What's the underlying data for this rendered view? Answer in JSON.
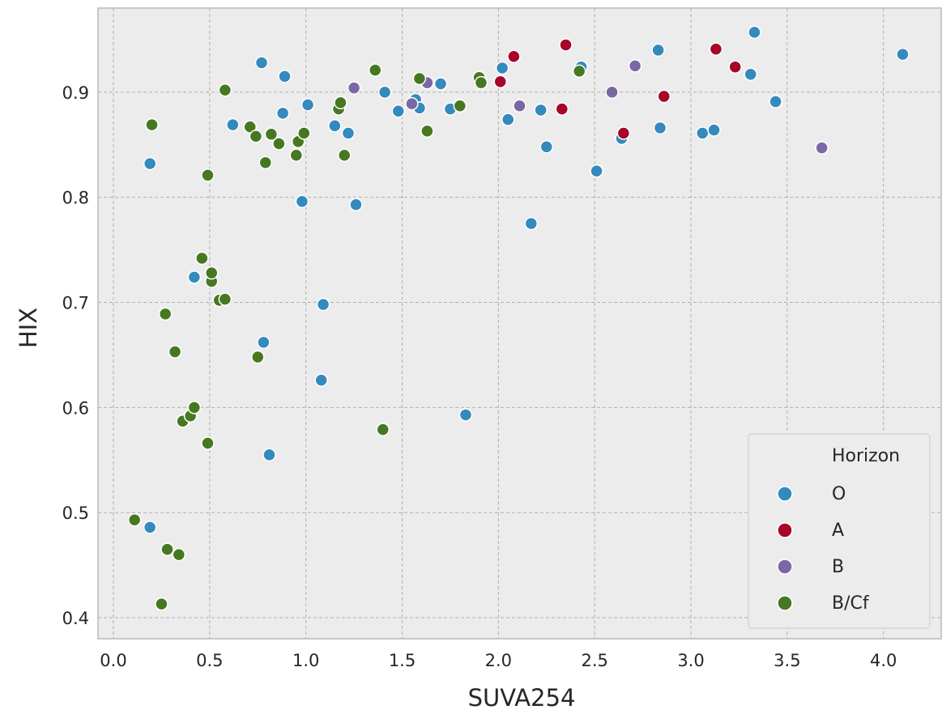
{
  "chart_data": {
    "type": "scatter",
    "title": "",
    "xlabel": "SUVA254",
    "ylabel": "HIX",
    "xlim": [
      -0.08,
      4.3
    ],
    "ylim": [
      0.38,
      0.98
    ],
    "xticks": [
      "0.0",
      "0.5",
      "1.0",
      "1.5",
      "2.0",
      "2.5",
      "3.0",
      "3.5",
      "4.0"
    ],
    "yticks": [
      "0.4",
      "0.5",
      "0.6",
      "0.7",
      "0.8",
      "0.9"
    ],
    "grid": true,
    "legend": {
      "title": "Horizon",
      "position": "lower-right"
    },
    "series": [
      {
        "name": "O",
        "color": "#348abd",
        "points": [
          [
            0.19,
            0.832
          ],
          [
            0.19,
            0.486
          ],
          [
            0.42,
            0.724
          ],
          [
            0.62,
            0.869
          ],
          [
            0.77,
            0.928
          ],
          [
            0.78,
            0.662
          ],
          [
            0.81,
            0.555
          ],
          [
            0.88,
            0.88
          ],
          [
            0.89,
            0.915
          ],
          [
            0.98,
            0.796
          ],
          [
            1.01,
            0.888
          ],
          [
            1.08,
            0.626
          ],
          [
            1.09,
            0.698
          ],
          [
            1.15,
            0.868
          ],
          [
            1.22,
            0.861
          ],
          [
            1.26,
            0.793
          ],
          [
            1.41,
            0.9
          ],
          [
            1.48,
            0.882
          ],
          [
            1.57,
            0.893
          ],
          [
            1.59,
            0.885
          ],
          [
            1.7,
            0.908
          ],
          [
            1.75,
            0.884
          ],
          [
            1.83,
            0.593
          ],
          [
            2.02,
            0.923
          ],
          [
            2.05,
            0.874
          ],
          [
            2.17,
            0.775
          ],
          [
            2.22,
            0.883
          ],
          [
            2.25,
            0.848
          ],
          [
            2.43,
            0.924
          ],
          [
            2.51,
            0.825
          ],
          [
            2.64,
            0.856
          ],
          [
            2.83,
            0.94
          ],
          [
            2.84,
            0.866
          ],
          [
            3.06,
            0.861
          ],
          [
            3.12,
            0.864
          ],
          [
            3.31,
            0.917
          ],
          [
            3.33,
            0.957
          ],
          [
            3.44,
            0.891
          ],
          [
            4.1,
            0.936
          ]
        ]
      },
      {
        "name": "A",
        "color": "#a60628",
        "points": [
          [
            2.01,
            0.91
          ],
          [
            2.08,
            0.934
          ],
          [
            2.33,
            0.884
          ],
          [
            2.35,
            0.945
          ],
          [
            2.65,
            0.861
          ],
          [
            2.86,
            0.896
          ],
          [
            3.13,
            0.941
          ],
          [
            3.23,
            0.924
          ]
        ]
      },
      {
        "name": "B",
        "color": "#7a68a6",
        "points": [
          [
            1.25,
            0.904
          ],
          [
            1.55,
            0.889
          ],
          [
            1.63,
            0.909
          ],
          [
            2.11,
            0.887
          ],
          [
            2.59,
            0.9
          ],
          [
            2.71,
            0.925
          ],
          [
            3.68,
            0.847
          ]
        ]
      },
      {
        "name": "B/Cf",
        "color": "#467821",
        "points": [
          [
            0.11,
            0.493
          ],
          [
            0.2,
            0.869
          ],
          [
            0.25,
            0.413
          ],
          [
            0.27,
            0.689
          ],
          [
            0.28,
            0.465
          ],
          [
            0.32,
            0.653
          ],
          [
            0.34,
            0.46
          ],
          [
            0.36,
            0.587
          ],
          [
            0.4,
            0.592
          ],
          [
            0.42,
            0.6
          ],
          [
            0.46,
            0.742
          ],
          [
            0.49,
            0.821
          ],
          [
            0.49,
            0.566
          ],
          [
            0.51,
            0.72
          ],
          [
            0.51,
            0.728
          ],
          [
            0.55,
            0.702
          ],
          [
            0.58,
            0.703
          ],
          [
            0.58,
            0.902
          ],
          [
            0.71,
            0.867
          ],
          [
            0.74,
            0.858
          ],
          [
            0.75,
            0.648
          ],
          [
            0.79,
            0.833
          ],
          [
            0.82,
            0.86
          ],
          [
            0.86,
            0.851
          ],
          [
            0.95,
            0.84
          ],
          [
            0.96,
            0.853
          ],
          [
            0.99,
            0.861
          ],
          [
            1.17,
            0.884
          ],
          [
            1.18,
            0.89
          ],
          [
            1.2,
            0.84
          ],
          [
            1.36,
            0.921
          ],
          [
            1.4,
            0.579
          ],
          [
            1.59,
            0.913
          ],
          [
            1.63,
            0.863
          ],
          [
            1.8,
            0.887
          ],
          [
            1.9,
            0.914
          ],
          [
            1.91,
            0.909
          ],
          [
            2.42,
            0.92
          ]
        ]
      }
    ]
  }
}
